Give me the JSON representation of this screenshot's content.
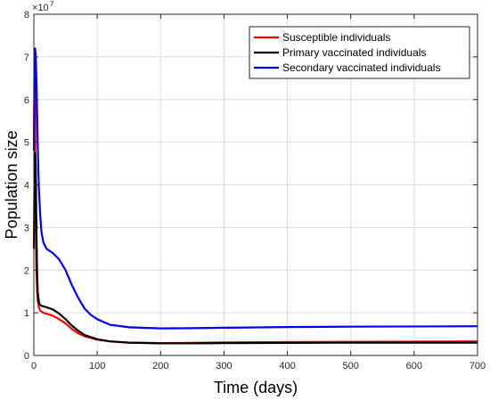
{
  "chart_data": {
    "type": "line",
    "xlabel": "Time (days)",
    "ylabel": "Population size",
    "y_multiplier_label": "×10",
    "y_multiplier_exponent": "7",
    "xlim": [
      0,
      700
    ],
    "ylim": [
      0,
      8
    ],
    "x_ticks": [
      0,
      100,
      200,
      300,
      400,
      500,
      600,
      700
    ],
    "x_tick_labels": [
      "0",
      "100",
      "200",
      "300",
      "400",
      "500",
      "600",
      "700"
    ],
    "y_ticks": [
      0,
      1,
      2,
      3,
      4,
      5,
      6,
      7,
      8
    ],
    "y_tick_labels": [
      "0",
      "1",
      "2",
      "3",
      "4",
      "5",
      "6",
      "7",
      "8"
    ],
    "grid": true,
    "legend_position": "top-right",
    "series": [
      {
        "name": "Susceptible individuals",
        "color": "#ff0000",
        "x": [
          0,
          1,
          2,
          3,
          4,
          5,
          6,
          8,
          10,
          15,
          20,
          30,
          40,
          50,
          60,
          70,
          80,
          100,
          120,
          150,
          200,
          250,
          300,
          400,
          500,
          600,
          700
        ],
        "y": [
          5.0,
          7.0,
          6.2,
          3.0,
          2.0,
          1.55,
          1.3,
          1.12,
          1.05,
          1.0,
          0.98,
          0.93,
          0.85,
          0.75,
          0.62,
          0.52,
          0.45,
          0.37,
          0.33,
          0.3,
          0.29,
          0.295,
          0.305,
          0.315,
          0.32,
          0.325,
          0.33
        ]
      },
      {
        "name": "Primary vaccinated individuals",
        "color": "#000000",
        "x": [
          0,
          1,
          2,
          3,
          4,
          5,
          6,
          8,
          10,
          15,
          20,
          30,
          40,
          50,
          60,
          70,
          80,
          100,
          120,
          150,
          200,
          250,
          300,
          400,
          500,
          600,
          700
        ],
        "y": [
          2.5,
          4.3,
          4.75,
          4.4,
          3.0,
          2.0,
          1.5,
          1.25,
          1.18,
          1.15,
          1.13,
          1.08,
          0.98,
          0.85,
          0.7,
          0.58,
          0.48,
          0.38,
          0.33,
          0.3,
          0.285,
          0.285,
          0.29,
          0.295,
          0.3,
          0.3,
          0.3
        ]
      },
      {
        "name": "Secondary vaccinated individuals",
        "color": "#0000ff",
        "x": [
          0,
          1,
          2,
          3,
          4,
          5,
          6,
          7,
          8,
          10,
          12,
          15,
          20,
          25,
          30,
          40,
          50,
          60,
          70,
          80,
          90,
          100,
          120,
          150,
          200,
          250,
          300,
          400,
          500,
          600,
          700
        ],
        "y": [
          4.8,
          6.2,
          7.2,
          7.0,
          6.5,
          5.8,
          5.0,
          4.4,
          3.9,
          3.3,
          2.9,
          2.65,
          2.5,
          2.45,
          2.4,
          2.25,
          2.0,
          1.65,
          1.35,
          1.1,
          0.95,
          0.85,
          0.72,
          0.66,
          0.635,
          0.64,
          0.65,
          0.665,
          0.675,
          0.68,
          0.685
        ]
      }
    ]
  }
}
